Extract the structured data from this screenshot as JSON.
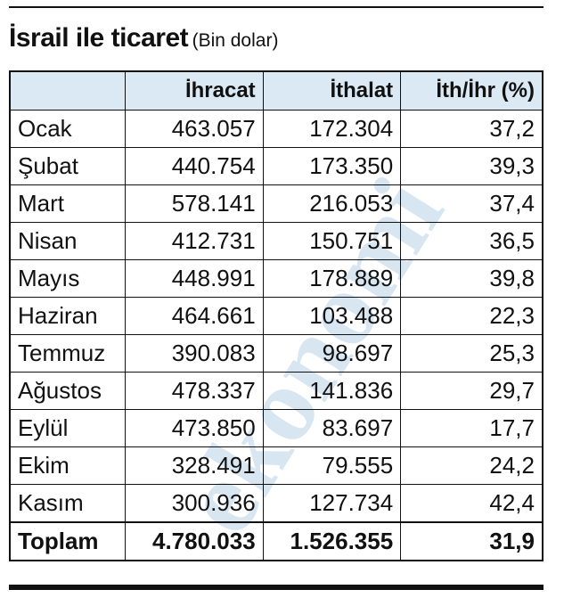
{
  "title": "İsrail ile ticaret",
  "subtitle": "(Bin dolar)",
  "watermark": "ekonomi",
  "table": {
    "header": [
      "",
      "İhracat",
      "İthalat",
      "İth/İhr (%)"
    ],
    "rows": [
      [
        "Ocak",
        "463.057",
        "172.304",
        "37,2"
      ],
      [
        "Şubat",
        "440.754",
        "173.350",
        "39,3"
      ],
      [
        "Mart",
        "578.141",
        "216.053",
        "37,4"
      ],
      [
        "Nisan",
        "412.731",
        "150.751",
        "36,5"
      ],
      [
        "Mayıs",
        "448.991",
        "178.889",
        "39,8"
      ],
      [
        "Haziran",
        "464.661",
        "103.488",
        "22,3"
      ],
      [
        "Temmuz",
        "390.083",
        "98.697",
        "25,3"
      ],
      [
        "Ağustos",
        "478.337",
        "141.836",
        "29,7"
      ],
      [
        "Eylül",
        "473.850",
        "83.697",
        "17,7"
      ],
      [
        "Ekim",
        "328.491",
        "79.555",
        "24,2"
      ],
      [
        "Kasım",
        "300.936",
        "127.734",
        "42,4"
      ]
    ],
    "total": [
      "Toplam",
      "4.780.033",
      "1.526.355",
      "31,9"
    ]
  }
}
